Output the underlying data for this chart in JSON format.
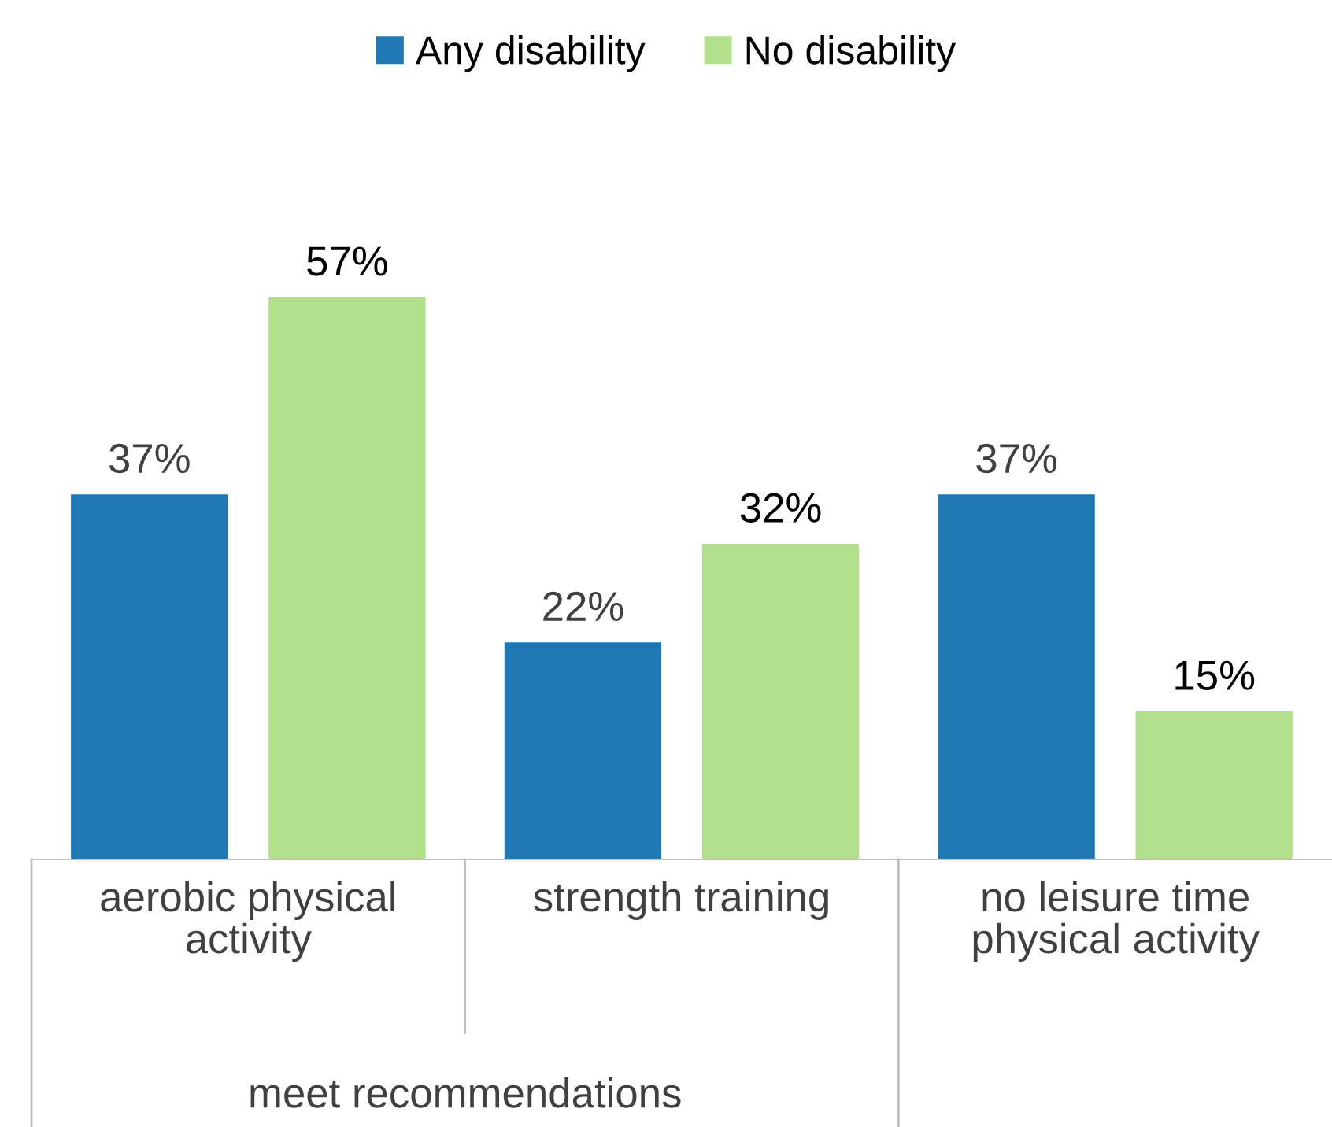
{
  "chart_data": {
    "type": "bar",
    "categories": [
      "aerobic physical\nactivity",
      "strength training",
      "no leisure time\nphysical activity"
    ],
    "series": [
      {
        "name": "Any disability",
        "color": "#1f77b4",
        "values": [
          37,
          22,
          37
        ],
        "value_labels": [
          "37%",
          "22%",
          "37%"
        ]
      },
      {
        "name": "No disability",
        "color": "#b2df8a",
        "values": [
          57,
          32,
          15
        ],
        "value_labels": [
          "57%",
          "32%",
          "15%"
        ]
      }
    ],
    "annotations": [
      "meet recommendations"
    ],
    "legend": "top",
    "grid": false
  }
}
